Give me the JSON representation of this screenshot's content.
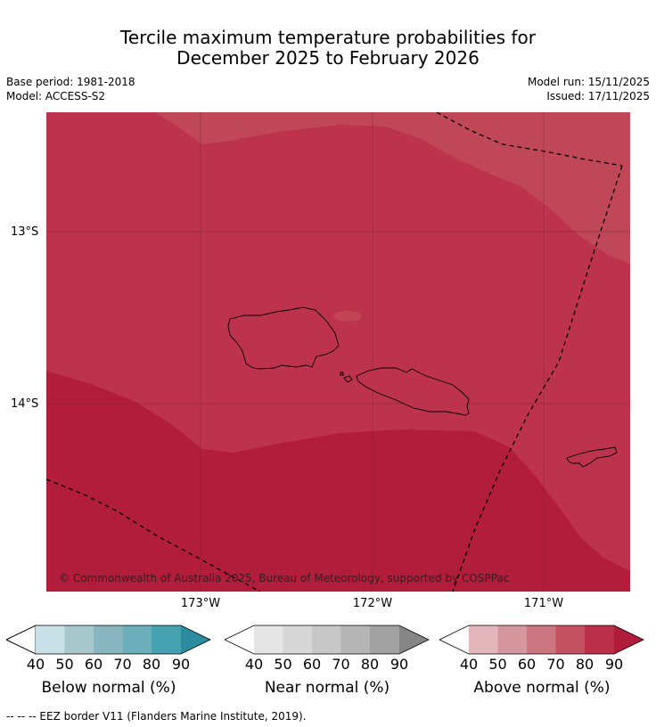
{
  "title": {
    "line1": "Tercile maximum temperature probabilities for",
    "line2": "December 2025 to February 2026"
  },
  "meta": {
    "base_period": "Base period: 1981-2018",
    "model": "Model: ACCESS-S2",
    "model_run": "Model run: 15/11/2025",
    "issued": "Issued: 17/11/2025"
  },
  "map": {
    "copyright": "© Commonwealth of Australia 2025, Bureau of Meteorology, supported by COSPPac",
    "lat_labels": [
      "13°S",
      "14°S"
    ],
    "lon_labels": [
      "173°W",
      "172°W",
      "171°W"
    ],
    "colors": {
      "above_60_70": "#cf4b5f",
      "above_70_80": "#bd334d",
      "above_80_90": "#b21d3b",
      "above_90": "#b21d3b",
      "land_outline": "#000000",
      "grid": "#7a2432"
    }
  },
  "colorbars": [
    {
      "label": "Below normal (%)",
      "ticks": [
        "40",
        "50",
        "60",
        "70",
        "80",
        "90"
      ],
      "colors": [
        "#ffffff",
        "#c7e1e6",
        "#a6c7cb",
        "#89b6c1",
        "#6daebb",
        "#45a0b0",
        "#2a8c9e"
      ]
    },
    {
      "label": "Near normal (%)",
      "ticks": [
        "40",
        "50",
        "60",
        "70",
        "80",
        "90"
      ],
      "colors": [
        "#ffffff",
        "#e5e5e5",
        "#d7d7d7",
        "#c8c8c8",
        "#b5b5b5",
        "#a1a1a1",
        "#858585"
      ]
    },
    {
      "label": "Above normal (%)",
      "ticks": [
        "40",
        "50",
        "60",
        "70",
        "80",
        "90"
      ],
      "colors": [
        "#ffffff",
        "#e3b6bc",
        "#d6969e",
        "#cb7580",
        "#c3515f",
        "#bb2f4a",
        "#b01c3a"
      ]
    }
  ],
  "footer": "--  --  -- EEZ border V11 (Flanders Marine Institute, 2019)."
}
